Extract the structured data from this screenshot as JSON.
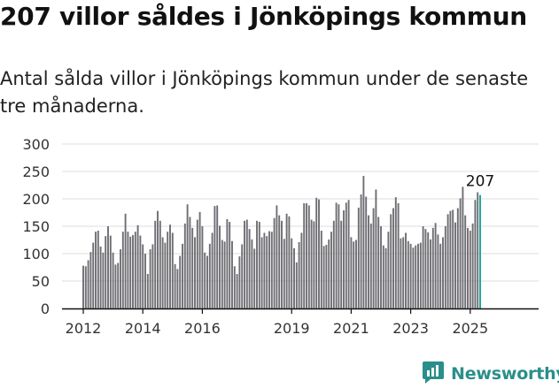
{
  "title": "207 villor såldes i Jönköpings kommun",
  "subtitle": "Antal sålda villor i Jönköpings kommun under de senaste tre månaderna.",
  "brand": {
    "name": "Newsworthy",
    "logo_icon": "newsworthy-chart-logo-icon",
    "color": "#2a8f8a"
  },
  "colors": {
    "bar": "#6e6e73",
    "highlight": "#1aa39a",
    "grid": "#dddddd",
    "axis": "#111111"
  },
  "chart_data": {
    "type": "bar",
    "title": "",
    "xlabel": "",
    "ylabel": "",
    "ylim": [
      0,
      300
    ],
    "yticks": [
      0,
      50,
      100,
      150,
      200,
      250,
      300
    ],
    "xticks": [
      {
        "label": "2012",
        "year": 2012
      },
      {
        "label": "2014",
        "year": 2014
      },
      {
        "label": "2016",
        "year": 2016
      },
      {
        "label": "2019",
        "year": 2019
      },
      {
        "label": "2021",
        "year": 2021
      },
      {
        "label": "2023",
        "year": 2023
      },
      {
        "label": "2025",
        "year": 2025
      }
    ],
    "start": "2012-01",
    "grid": true,
    "highlight_label": "207",
    "values": [
      78,
      77,
      88,
      103,
      120,
      140,
      142,
      113,
      102,
      132,
      150,
      133,
      102,
      80,
      83,
      108,
      140,
      173,
      140,
      131,
      134,
      140,
      152,
      133,
      117,
      100,
      63,
      108,
      117,
      160,
      178,
      160,
      130,
      120,
      140,
      153,
      138,
      81,
      72,
      96,
      118,
      155,
      190,
      167,
      147,
      130,
      162,
      176,
      150,
      102,
      96,
      118,
      138,
      187,
      188,
      151,
      125,
      122,
      163,
      158,
      123,
      77,
      63,
      95,
      117,
      160,
      162,
      145,
      126,
      109,
      160,
      158,
      130,
      138,
      132,
      141,
      140,
      165,
      188,
      170,
      160,
      127,
      173,
      168,
      128,
      110,
      84,
      121,
      138,
      192,
      192,
      188,
      162,
      159,
      202,
      199,
      142,
      114,
      116,
      126,
      140,
      160,
      193,
      190,
      160,
      179,
      193,
      198,
      130,
      122,
      125,
      184,
      208,
      242,
      204,
      170,
      155,
      183,
      217,
      167,
      150,
      115,
      110,
      140,
      172,
      183,
      203,
      192,
      128,
      130,
      138,
      123,
      118,
      111,
      115,
      118,
      120,
      150,
      145,
      139,
      126,
      147,
      156,
      135,
      118,
      130,
      150,
      172,
      178,
      180,
      157,
      183,
      201,
      222,
      170,
      147,
      142,
      155,
      198,
      212,
      207
    ]
  }
}
